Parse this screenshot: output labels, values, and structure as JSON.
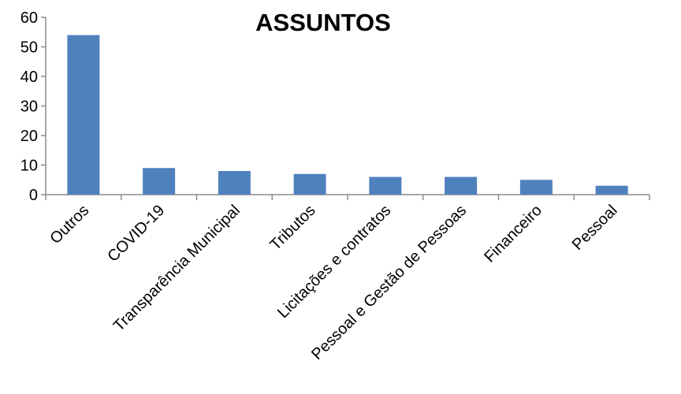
{
  "chart_data": {
    "type": "bar",
    "title": "ASSUNTOS",
    "categories": [
      "Outros",
      "COVID-19",
      "Transparência Municipal",
      "Tributos",
      "Licitações e contratos",
      "Pessoal e Gestão de Pessoas",
      "Financeiro",
      "Pessoal"
    ],
    "values": [
      54,
      9,
      8,
      7,
      6,
      6,
      5,
      3
    ],
    "ylim": [
      0,
      60
    ],
    "yticks": [
      0,
      10,
      20,
      30,
      40,
      50,
      60
    ],
    "grid": false,
    "legend": "none",
    "bar_color": "#4f81bd"
  }
}
